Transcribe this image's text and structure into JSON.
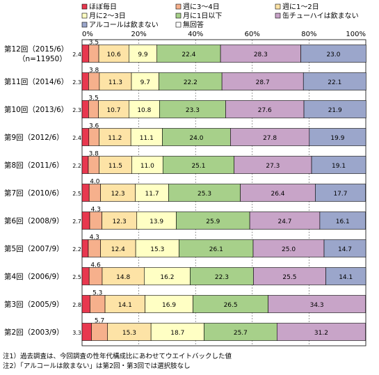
{
  "chart_data": {
    "type": "bar",
    "stacked": true,
    "orientation": "horizontal",
    "unit_scale": "percent",
    "xlim": [
      0,
      100
    ],
    "x_ticks": [
      "0%",
      "20%",
      "40%",
      "60%",
      "80%",
      "100%"
    ],
    "legend_position": "top",
    "categories": [
      "第12回（2015/6）",
      "第11回（2014/6）",
      "第10回（2013/6）",
      "第9回（2012/6）",
      "第8回（2011/6）",
      "第7回（2010/6）",
      "第6回（2008/9）",
      "第5回（2007/9）",
      "第4回（2006/9）",
      "第3回（2005/9）",
      "第2回（2003/9）"
    ],
    "category_sublabels": [
      "（n=11950）",
      "",
      "",
      "",
      "",
      "",
      "",
      "",
      "",
      "",
      ""
    ],
    "series": [
      {
        "name": "ほぼ毎日",
        "color": "#e8384f",
        "values": [
          2.4,
          2.3,
          2.3,
          2.4,
          2.2,
          2.5,
          2.7,
          2.2,
          2.5,
          2.8,
          3.3
        ]
      },
      {
        "name": "週に3～4日",
        "color": "#f6b08c",
        "values": [
          3.5,
          3.8,
          3.5,
          3.6,
          3.8,
          4.0,
          4.3,
          4.3,
          4.6,
          5.3,
          5.7
        ]
      },
      {
        "name": "週に1～2日",
        "color": "#fde3a6",
        "values": [
          10.6,
          11.3,
          10.7,
          11.2,
          11.5,
          12.3,
          12.3,
          12.4,
          14.8,
          14.1,
          15.3
        ]
      },
      {
        "name": "月に2～3日",
        "color": "#ffffc4",
        "values": [
          9.9,
          9.7,
          10.8,
          11.1,
          11.0,
          11.7,
          13.9,
          15.3,
          16.2,
          16.9,
          18.7
        ]
      },
      {
        "name": "月に1日以下",
        "color": "#a7d08a",
        "values": [
          22.4,
          22.2,
          23.3,
          24.0,
          25.1,
          25.3,
          25.9,
          26.1,
          22.3,
          26.5,
          25.7
        ]
      },
      {
        "name": "缶チューハイは飲まない",
        "color": "#c8a4c8",
        "values": [
          28.3,
          28.7,
          27.6,
          27.8,
          27.3,
          26.4,
          24.7,
          25.0,
          25.5,
          34.3,
          31.2
        ]
      },
      {
        "name": "アルコールは飲まない",
        "color": "#9ba6cb",
        "values": [
          23.0,
          22.1,
          21.9,
          19.9,
          19.1,
          17.7,
          16.1,
          14.7,
          14.1,
          null,
          null
        ]
      },
      {
        "name": "無回答",
        "color": "#ffffff",
        "values": [
          0,
          0,
          0,
          0,
          0,
          0,
          0,
          0,
          0,
          0,
          0
        ]
      }
    ]
  },
  "notes": [
    "注1）過去調査は、今回調査の性年代構成比にあわせてウエイトバックした値",
    "注2）「アルコールは飲まない」は第2回・第3回では選択肢なし"
  ]
}
